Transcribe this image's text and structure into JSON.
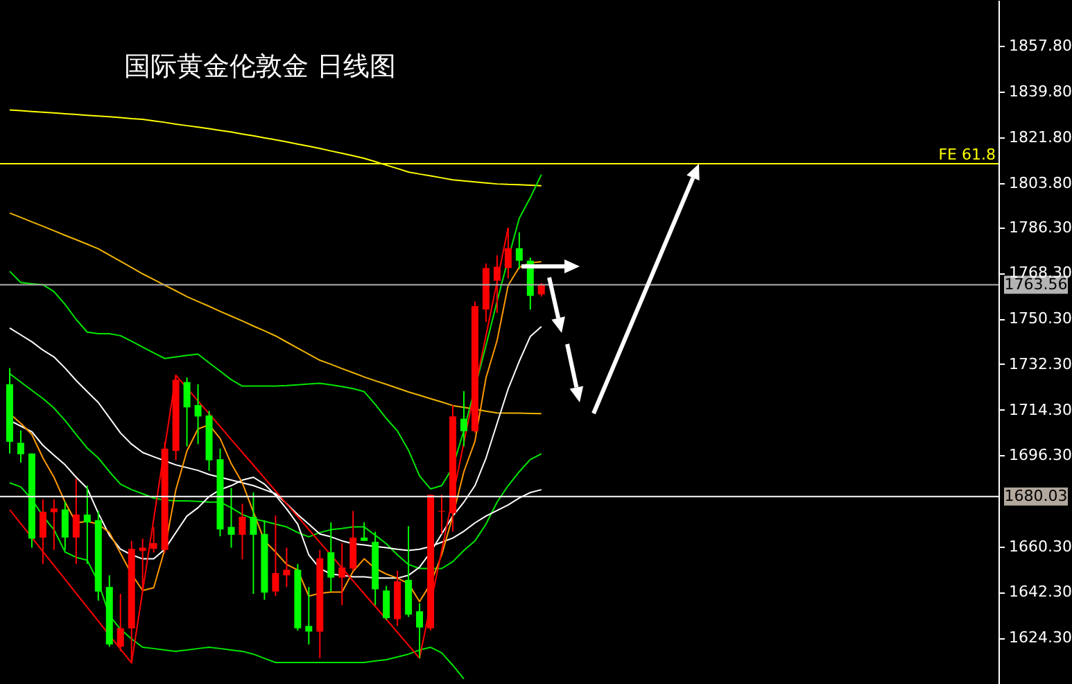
{
  "chart_data": {
    "type": "candlestick",
    "title": "国际黄金伦敦金 日线图",
    "categories": [
      null,
      null,
      null,
      null,
      null,
      null,
      null,
      null,
      null,
      null,
      null,
      null,
      null,
      null,
      null,
      null,
      null,
      null,
      null,
      null,
      null,
      null,
      null,
      null,
      null,
      null,
      null,
      null,
      null,
      null,
      null,
      null,
      null,
      null,
      null,
      null,
      null,
      null,
      null,
      null,
      null,
      null,
      null,
      null,
      null,
      null,
      null,
      null,
      null
    ],
    "ohlc": [
      [
        1724.3,
        1730.7,
        1697.0,
        1701.6
      ],
      [
        1701.2,
        1706.1,
        1693.4,
        1696.7
      ],
      [
        1697.0,
        1697.0,
        1659.8,
        1663.4
      ],
      [
        1663.8,
        1678.9,
        1653.4,
        1674.0
      ],
      [
        1673.8,
        1678.9,
        1658.9,
        1675.3
      ],
      [
        1674.9,
        1678.0,
        1658.9,
        1663.8
      ],
      [
        1663.8,
        1687.0,
        1653.4,
        1672.9
      ],
      [
        1672.9,
        1684.3,
        1653.4,
        1669.8
      ],
      [
        1670.7,
        1674.3,
        1638.9,
        1642.5
      ],
      [
        1644.3,
        1648.9,
        1620.7,
        1621.6
      ],
      [
        1620.7,
        1641.6,
        1618.9,
        1628.0
      ],
      [
        1628.0,
        1662.5,
        1614.3,
        1659.3
      ],
      [
        1658.5,
        1663.4,
        1642.5,
        1659.8
      ],
      [
        1659.4,
        1668.0,
        1657.9,
        1661.6
      ],
      [
        1658.9,
        1701.6,
        1657.9,
        1698.9
      ],
      [
        1698.0,
        1727.9,
        1694.3,
        1726.1
      ],
      [
        1725.2,
        1727.0,
        1699.8,
        1715.2
      ],
      [
        1716.1,
        1724.3,
        1700.7,
        1711.6
      ],
      [
        1712.0,
        1713.8,
        1690.2,
        1694.3
      ],
      [
        1694.7,
        1698.9,
        1664.3,
        1667.0
      ],
      [
        1668.0,
        1683.4,
        1659.8,
        1664.9
      ],
      [
        1664.9,
        1677.1,
        1655.2,
        1672.0
      ],
      [
        1672.0,
        1681.6,
        1641.6,
        1664.9
      ],
      [
        1665.2,
        1670.7,
        1639.2,
        1642.1
      ],
      [
        1642.5,
        1672.5,
        1640.7,
        1649.8
      ],
      [
        1648.9,
        1659.8,
        1644.3,
        1651.1
      ],
      [
        1651.1,
        1653.4,
        1627.1,
        1628.0
      ],
      [
        1628.9,
        1644.3,
        1621.6,
        1626.7
      ],
      [
        1626.7,
        1658.9,
        1616.2,
        1655.6
      ],
      [
        1658.0,
        1669.8,
        1642.5,
        1648.0
      ],
      [
        1648.0,
        1661.6,
        1637.1,
        1652.0
      ],
      [
        1651.6,
        1674.3,
        1650.7,
        1663.8
      ],
      [
        1663.8,
        1669.8,
        1662.5,
        1662.5
      ],
      [
        1662.1,
        1666.1,
        1637.1,
        1643.4
      ],
      [
        1642.9,
        1644.7,
        1631.3,
        1632.0
      ],
      [
        1631.6,
        1650.7,
        1628.9,
        1646.5
      ],
      [
        1647.1,
        1668.3,
        1632.5,
        1633.4
      ],
      [
        1634.7,
        1637.9,
        1616.2,
        1628.3
      ],
      [
        1628.0,
        1680.7,
        1627.1,
        1680.7
      ],
      [
        1674.0,
        1680.7,
        1665.2,
        1674.3
      ],
      [
        1673.4,
        1716.1,
        1666.1,
        1711.6
      ],
      [
        1710.7,
        1721.6,
        1699.8,
        1705.8
      ],
      [
        1705.8,
        1757.0,
        1705.2,
        1755.2
      ],
      [
        1753.8,
        1772.0,
        1748.9,
        1770.2
      ],
      [
        1765.2,
        1775.2,
        1752.5,
        1770.7
      ],
      [
        1770.2,
        1786.1,
        1766.1,
        1778.0
      ],
      [
        1778.0,
        1784.3,
        1769.8,
        1773.1
      ],
      [
        1773.1,
        1774.3,
        1753.8,
        1759.2
      ],
      [
        1759.8,
        1764.3,
        1758.9,
        1763.8
      ]
    ],
    "colors": [
      "#00ff00",
      "#00ff00",
      "#00ff00",
      "#ff0000",
      "#ff0000",
      "#00ff00",
      "#ff0000",
      "#00ff00",
      "#00ff00",
      "#00ff00",
      "#ff0000",
      "#ff0000",
      "#ff0000",
      "#ff0000",
      "#ff0000",
      "#ff0000",
      "#00ff00",
      "#00ff00",
      "#00ff00",
      "#00ff00",
      "#00ff00",
      "#ff0000",
      "#00ff00",
      "#00ff00",
      "#ff0000",
      "#ff0000",
      "#00ff00",
      "#00ff00",
      "#ff0000",
      "#00ff00",
      "#ff0000",
      "#ff0000",
      "#00ff00",
      "#00ff00",
      "#00ff00",
      "#ff0000",
      "#00ff00",
      "#00ff00",
      "#ff0000",
      "#ff0000",
      "#ff0000",
      "#00ff00",
      "#ff0000",
      "#ff0000",
      "#ff0000",
      "#ff0000",
      "#00ff00",
      "#00ff00",
      "#ff0000"
    ],
    "series": [
      {
        "type": "line",
        "color": "#ffff00",
        "values": [
          1832.6,
          1832.3,
          1832.0,
          1831.7,
          1831.4,
          1831.1,
          1830.8,
          1830.5,
          1830.2,
          1829.9,
          1829.6,
          1829.2,
          1828.9,
          1828.3,
          1827.7,
          1827.0,
          1826.4,
          1825.8,
          1825.2,
          1824.5,
          1823.9,
          1823.1,
          1822.4,
          1821.6,
          1820.8,
          1820.0,
          1819.1,
          1818.3,
          1817.4,
          1816.4,
          1815.5,
          1814.5,
          1813.5,
          1812.2,
          1810.8,
          1809.5,
          1808.1,
          1807.3,
          1806.6,
          1805.8,
          1805.0,
          1804.6,
          1804.2,
          1803.8,
          1803.4,
          1803.2,
          1803.1,
          1802.9,
          1802.7
        ]
      },
      {
        "type": "line",
        "color": "#f0b400",
        "values": [
          1791.9,
          1790.2,
          1788.4,
          1786.7,
          1784.9,
          1783.1,
          1781.4,
          1779.6,
          1777.8,
          1775.3,
          1772.9,
          1770.4,
          1767.9,
          1765.7,
          1763.4,
          1761.2,
          1758.9,
          1757.0,
          1755.1,
          1753.1,
          1751.2,
          1749.3,
          1747.3,
          1745.4,
          1743.4,
          1741.0,
          1738.6,
          1736.2,
          1733.8,
          1732.2,
          1730.5,
          1728.9,
          1727.2,
          1725.7,
          1724.3,
          1722.8,
          1721.3,
          1720.0,
          1718.6,
          1717.3,
          1715.9,
          1715.2,
          1714.5,
          1713.7,
          1713.0,
          1712.9,
          1712.9,
          1712.8,
          1712.7
        ]
      },
      {
        "type": "line",
        "color": "#00e600",
        "values": [
          1768.9,
          1764.5,
          1764.0,
          1763.6,
          1760.9,
          1755.8,
          1749.9,
          1744.9,
          1744.3,
          1744.3,
          1743.5,
          1741.3,
          1739.0,
          1736.7,
          1734.5,
          1735.1,
          1735.7,
          1736.2,
          1732.8,
          1729.5,
          1726.1,
          1723.6,
          1723.6,
          1723.6,
          1723.6,
          1723.8,
          1724.1,
          1724.4,
          1724.7,
          1724.1,
          1723.4,
          1722.6,
          1721.4,
          1716.4,
          1710.8,
          1705.9,
          1698.3,
          1688.1,
          1683.0,
          1684.3,
          1691.6,
          1706.1,
          null,
          1739.6,
          1757.1,
          1773.8,
          1789.8,
          1798.0,
          1807.1
        ]
      },
      {
        "type": "line",
        "color": "#00e600",
        "values": [
          1728.5,
          1725.2,
          1721.9,
          1718.7,
          1714.9,
          1710.0,
          1704.5,
          1699.1,
          1695.2,
          1689.8,
          1684.9,
          1682.7,
          1681.1,
          1679.4,
          1678.6,
          1678.3,
          1678.3,
          1678.1,
          1677.8,
          1677.8,
          1675.6,
          1672.9,
          1671.2,
          1670.2,
          1669.1,
          1668.0,
          1665.8,
          1664.1,
          1665.8,
          1666.9,
          1667.4,
          1668.0,
          1668.0,
          1664.7,
          1661.4,
          1657.0,
          1653.2,
          1651.6,
          1651.6,
          1651.6,
          1654.3,
          1658.7,
          1662.5,
          1669.1,
          1677.8,
          1684.3,
          1689.8,
          1694.6,
          1696.9
        ]
      },
      {
        "type": "line",
        "color": "#00e600",
        "values": [
          1685.4,
          1683.8,
          1678.9,
          1672.3,
          1666.9,
          1658.1,
          1656.0,
          1654.9,
          1646.1,
          1633.1,
          1627.6,
          1623.8,
          1620.5,
          1620.0,
          1619.4,
          1618.9,
          1619.4,
          1620.0,
          1620.5,
          1620.0,
          1619.4,
          1618.9,
          1617.8,
          1616.1,
          1614.5,
          1614.5,
          1614.5,
          1614.5,
          1614.5,
          1614.5,
          1614.5,
          1614.5,
          1614.5,
          1615.1,
          1615.6,
          1616.7,
          1617.8,
          1619.4,
          1620.5,
          1618.3,
          1613.4,
          1608.0,
          null,
          null,
          null,
          null,
          null,
          null,
          null
        ]
      },
      {
        "type": "line",
        "color": "#ffffff",
        "values": [
          1746.5,
          1743.8,
          1741.1,
          1737.8,
          1735.1,
          1730.7,
          1725.8,
          1721.4,
          1717.1,
          1711.1,
          1705.1,
          1700.7,
          1697.4,
          1695.7,
          1694.1,
          1692.5,
          1691.4,
          1690.3,
          1688.7,
          1687.6,
          1686.5,
          1685.4,
          1684.3,
          1682.7,
          1681.1,
          1677.2,
          1672.9,
          1669.1,
          1665.2,
          1664.1,
          1662.5,
          1661.4,
          1660.9,
          1660.3,
          1659.8,
          1659.2,
          1658.7,
          1659.2,
          1660.3,
          1662.0,
          1663.6,
          1666.3,
          1669.6,
          1672.3,
          1674.5,
          1676.7,
          1679.4,
          1681.6,
          1682.7
        ]
      },
      {
        "type": "line",
        "color": "#ffffff",
        "values": [
          1710.0,
          1707.8,
          1705.6,
          1700.2,
          1696.3,
          1692.5,
          1687.6,
          1683.2,
          1673.4,
          1664.7,
          1659.2,
          1657.0,
          1655.4,
          1655.4,
          1659.2,
          1665.8,
          1672.3,
          1675.6,
          1680.0,
          1682.7,
          1684.3,
          1686.5,
          1687.6,
          1684.9,
          1680.5,
          1675.1,
          1669.1,
          1657.0,
          1651.6,
          1649.4,
          1648.9,
          1648.3,
          1648.3,
          1647.8,
          1647.8,
          1647.8,
          1648.9,
          1652.1,
          1658.1,
          1665.2,
          1672.3,
          1677.8,
          1684.3,
          1695.2,
          1708.9,
          1722.5,
          1733.4,
          1743.2,
          1747.1
        ]
      },
      {
        "type": "line",
        "color": "#ff9900",
        "values": [
          1712.7,
          1708.9,
          1704.5,
          1695.2,
          1687.6,
          1677.8,
          1669.6,
          1670.2,
          1669.1,
          1665.8,
          1657.6,
          1649.4,
          1642.9,
          1644.0,
          1659.2,
          1682.7,
          1698.0,
          1706.7,
          1708.3,
          1702.9,
          1693.0,
          1685.4,
          1673.9,
          1662.5,
          1658.1,
          1653.2,
          1651.0,
          1640.7,
          1641.8,
          1642.3,
          1642.3,
          1650.5,
          1655.4,
          1651.6,
          1649.4,
          1647.8,
          1645.6,
          1638.5,
          1645.6,
          1657.0,
          1672.3,
          1689.8,
          1701.8,
          1726.9,
          1741.6,
          1763.4,
          1770.5,
          1772.2,
          1772.7
        ]
      },
      {
        "type": "line",
        "color": "#ff0000",
        "values": [
          1674.8,
          1669.3,
          1663.8,
          1658.3,
          1652.8,
          1647.3,
          1641.8,
          1636.3,
          1630.8,
          1625.3,
          1619.8,
          1614.3,
          1642.7,
          1671.1,
          1699.5,
          1727.9,
          1722.8,
          1717.7,
          1712.7,
          1707.6,
          1702.5,
          1697.4,
          1692.4,
          1687.3,
          1682.2,
          1677.1,
          1672.1,
          1667.0,
          1661.9,
          1656.9,
          1651.8,
          1646.7,
          1641.6,
          1636.6,
          1631.5,
          1626.4,
          1621.3,
          1616.2,
          1637.4,
          1658.7,
          1679.9,
          1701.2,
          1722.4,
          1743.6,
          1764.9,
          1786.1,
          null,
          null,
          null
        ]
      }
    ],
    "ylim": [
      1606,
      1876
    ],
    "yticks": [
      {
        "value": 1624.3,
        "label": "1624.30"
      },
      {
        "value": 1642.3,
        "label": "1642.30"
      },
      {
        "value": 1660.3,
        "label": "1660.30"
      },
      {
        "value": 1696.3,
        "label": "1696.30"
      },
      {
        "value": 1714.3,
        "label": "1714.30"
      },
      {
        "value": 1732.3,
        "label": "1732.30"
      },
      {
        "value": 1750.3,
        "label": "1750.30"
      },
      {
        "value": 1768.3,
        "label": "1768.30"
      },
      {
        "value": 1786.3,
        "label": "1786.30"
      },
      {
        "value": 1803.8,
        "label": "1803.80"
      },
      {
        "value": 1821.8,
        "label": "1821.80"
      },
      {
        "value": 1839.8,
        "label": "1839.80"
      },
      {
        "value": 1857.8,
        "label": "1857.80"
      }
    ],
    "ref_lines": [
      {
        "axis": "y",
        "value": 1811.4,
        "label": "FE 61.8",
        "color": "#ffff00"
      },
      {
        "axis": "y",
        "value": 1763.56,
        "label": "1763.56",
        "color": "#b0b0b0"
      },
      {
        "axis": "y",
        "value": 1680.03,
        "label": "1680.03",
        "color": "#ffffff"
      }
    ],
    "tick_labels": "y"
  }
}
